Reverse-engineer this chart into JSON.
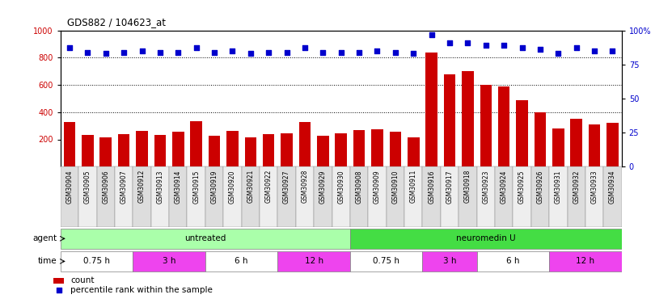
{
  "title": "GDS882 / 104623_at",
  "samples": [
    "GSM30904",
    "GSM30905",
    "GSM30906",
    "GSM30907",
    "GSM30912",
    "GSM30913",
    "GSM30914",
    "GSM30915",
    "GSM30919",
    "GSM30920",
    "GSM30921",
    "GSM30922",
    "GSM30927",
    "GSM30928",
    "GSM30929",
    "GSM30930",
    "GSM30908",
    "GSM30909",
    "GSM30910",
    "GSM30911",
    "GSM30916",
    "GSM30917",
    "GSM30918",
    "GSM30923",
    "GSM30924",
    "GSM30925",
    "GSM30926",
    "GSM30931",
    "GSM30932",
    "GSM30933",
    "GSM30934"
  ],
  "counts": [
    330,
    230,
    215,
    240,
    260,
    235,
    255,
    335,
    225,
    265,
    215,
    240,
    245,
    325,
    225,
    245,
    270,
    275,
    255,
    215,
    835,
    675,
    700,
    600,
    590,
    490,
    400,
    280,
    350,
    310,
    320
  ],
  "percentiles": [
    87,
    84,
    83,
    84,
    85,
    84,
    84,
    87,
    84,
    85,
    83,
    84,
    84,
    87,
    84,
    84,
    84,
    85,
    84,
    83,
    97,
    91,
    91,
    89,
    89,
    87,
    86,
    83,
    87,
    85,
    85
  ],
  "bar_color": "#cc0000",
  "dot_color": "#0000cc",
  "ylim_left": [
    0,
    1000
  ],
  "ylim_right": [
    0,
    100
  ],
  "yticks_left": [
    200,
    400,
    600,
    800,
    1000
  ],
  "yticks_right": [
    0,
    25,
    50,
    75,
    100
  ],
  "grid_values": [
    400,
    600,
    800
  ],
  "agent_groups": [
    {
      "label": "untreated",
      "start": 0,
      "end": 16,
      "color": "#aaffaa"
    },
    {
      "label": "neuromedin U",
      "start": 16,
      "end": 31,
      "color": "#44dd44"
    }
  ],
  "time_groups": [
    {
      "label": "0.75 h",
      "start": 0,
      "end": 4,
      "color": "#ffffff"
    },
    {
      "label": "3 h",
      "start": 4,
      "end": 8,
      "color": "#ee44ee"
    },
    {
      "label": "6 h",
      "start": 8,
      "end": 12,
      "color": "#ffffff"
    },
    {
      "label": "12 h",
      "start": 12,
      "end": 16,
      "color": "#ee44ee"
    },
    {
      "label": "0.75 h",
      "start": 16,
      "end": 20,
      "color": "#ffffff"
    },
    {
      "label": "3 h",
      "start": 20,
      "end": 23,
      "color": "#ee44ee"
    },
    {
      "label": "6 h",
      "start": 23,
      "end": 27,
      "color": "#ffffff"
    },
    {
      "label": "12 h",
      "start": 27,
      "end": 31,
      "color": "#ee44ee"
    }
  ],
  "legend_count_label": "count",
  "legend_pct_label": "percentile rank within the sample",
  "agent_label": "agent",
  "time_label": "time",
  "label_row_color": "#dddddd"
}
